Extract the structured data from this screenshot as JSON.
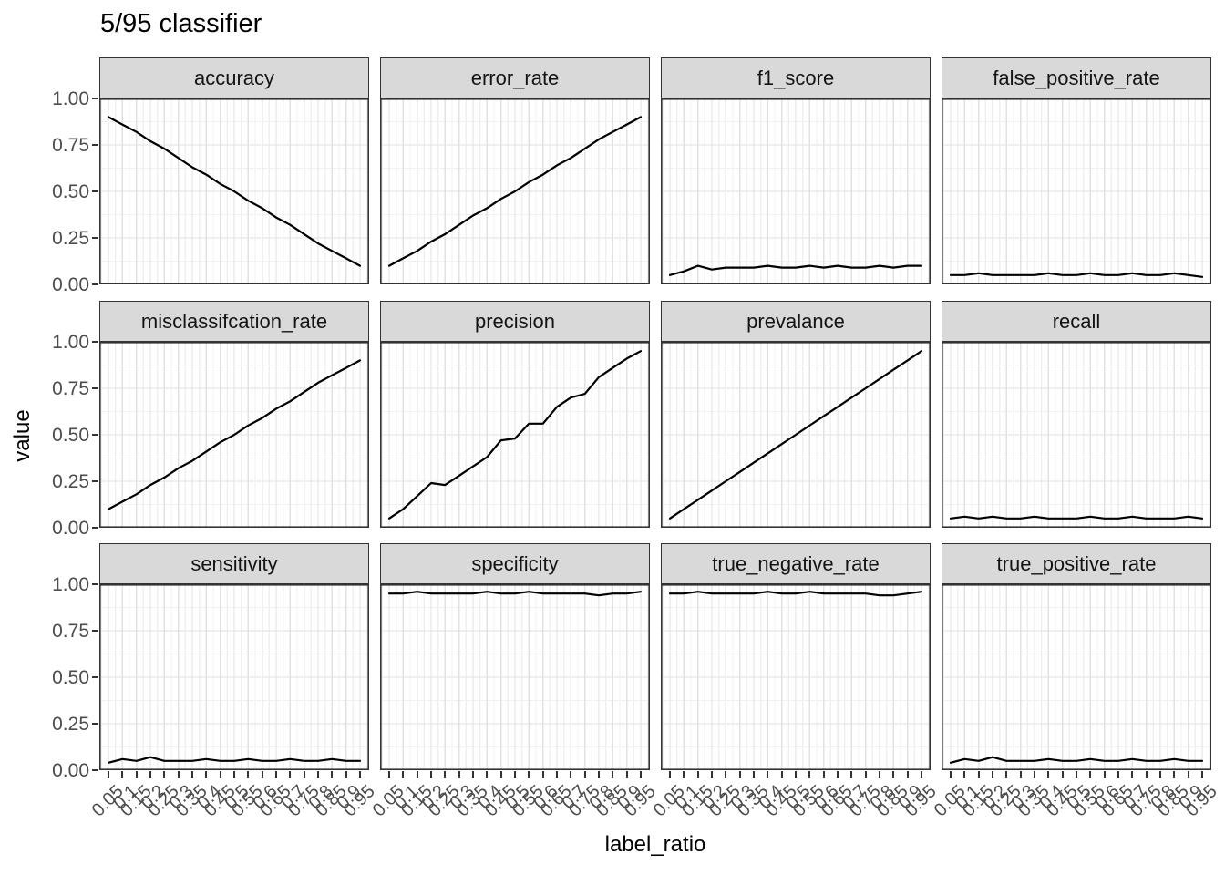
{
  "title": "5/95 classifier",
  "colors": {
    "strip_bg": "#d9d9d9",
    "panel_bg": "#ffffff",
    "panel_border": "#333333",
    "grid_major": "#e2e2e2",
    "grid_minor": "#f0f0f0",
    "series_line": "#000000",
    "tick_label": "#4d4d4d",
    "tick_mark": "#333333"
  },
  "chart_data": {
    "type": "line",
    "title": "5/95 classifier",
    "xlabel": "label_ratio",
    "ylabel": "value",
    "ylim": [
      0,
      1
    ],
    "grid": true,
    "legend": "none",
    "facet_layout": {
      "rows": 3,
      "cols": 4
    },
    "x": [
      0.05,
      0.1,
      0.15,
      0.2,
      0.25,
      0.3,
      0.35,
      0.4,
      0.45,
      0.5,
      0.55,
      0.6,
      0.65,
      0.7,
      0.75,
      0.8,
      0.85,
      0.9,
      0.95
    ],
    "x_tick_labels": [
      "0.05",
      "0.1",
      "0.15",
      "0.2",
      "0.25",
      "0.3",
      "0.35",
      "0.4",
      "0.45",
      "0.5",
      "0.55",
      "0.6",
      "0.65",
      "0.7",
      "0.75",
      "0.8",
      "0.85",
      "0.9",
      "0.95"
    ],
    "y_ticks": [
      {
        "label": "1.00",
        "value": 1.0
      },
      {
        "label": "0.75",
        "value": 0.75
      },
      {
        "label": "0.50",
        "value": 0.5
      },
      {
        "label": "0.25",
        "value": 0.25
      },
      {
        "label": "0.00",
        "value": 0.0
      }
    ],
    "y_minor_ticks": [
      0.125,
      0.375,
      0.625,
      0.875
    ],
    "series": [
      {
        "name": "accuracy",
        "values": [
          0.9,
          0.86,
          0.82,
          0.77,
          0.73,
          0.68,
          0.63,
          0.59,
          0.54,
          0.5,
          0.45,
          0.41,
          0.36,
          0.32,
          0.27,
          0.22,
          0.18,
          0.14,
          0.1
        ]
      },
      {
        "name": "error_rate",
        "values": [
          0.1,
          0.14,
          0.18,
          0.23,
          0.27,
          0.32,
          0.37,
          0.41,
          0.46,
          0.5,
          0.55,
          0.59,
          0.64,
          0.68,
          0.73,
          0.78,
          0.82,
          0.86,
          0.9
        ]
      },
      {
        "name": "f1_score",
        "values": [
          0.05,
          0.07,
          0.1,
          0.08,
          0.09,
          0.09,
          0.09,
          0.1,
          0.09,
          0.09,
          0.1,
          0.09,
          0.1,
          0.09,
          0.09,
          0.1,
          0.09,
          0.1,
          0.1
        ]
      },
      {
        "name": "false_positive_rate",
        "values": [
          0.05,
          0.05,
          0.06,
          0.05,
          0.05,
          0.05,
          0.05,
          0.06,
          0.05,
          0.05,
          0.06,
          0.05,
          0.05,
          0.06,
          0.05,
          0.05,
          0.06,
          0.05,
          0.04
        ]
      },
      {
        "name": "misclassifcation_rate",
        "values": [
          0.1,
          0.14,
          0.18,
          0.23,
          0.27,
          0.32,
          0.36,
          0.41,
          0.46,
          0.5,
          0.55,
          0.59,
          0.64,
          0.68,
          0.73,
          0.78,
          0.82,
          0.86,
          0.9
        ]
      },
      {
        "name": "precision",
        "values": [
          0.05,
          0.1,
          0.17,
          0.24,
          0.23,
          0.28,
          0.33,
          0.38,
          0.47,
          0.48,
          0.56,
          0.56,
          0.65,
          0.7,
          0.72,
          0.81,
          0.86,
          0.91,
          0.95
        ]
      },
      {
        "name": "prevalance",
        "values": [
          0.05,
          0.1,
          0.15,
          0.2,
          0.25,
          0.3,
          0.35,
          0.4,
          0.45,
          0.5,
          0.55,
          0.6,
          0.65,
          0.7,
          0.75,
          0.8,
          0.85,
          0.9,
          0.95
        ]
      },
      {
        "name": "recall",
        "values": [
          0.05,
          0.06,
          0.05,
          0.06,
          0.05,
          0.05,
          0.06,
          0.05,
          0.05,
          0.05,
          0.06,
          0.05,
          0.05,
          0.06,
          0.05,
          0.05,
          0.05,
          0.06,
          0.05
        ]
      },
      {
        "name": "sensitivity",
        "values": [
          0.04,
          0.06,
          0.05,
          0.07,
          0.05,
          0.05,
          0.05,
          0.06,
          0.05,
          0.05,
          0.06,
          0.05,
          0.05,
          0.06,
          0.05,
          0.05,
          0.06,
          0.05,
          0.05
        ]
      },
      {
        "name": "specificity",
        "values": [
          0.95,
          0.95,
          0.96,
          0.95,
          0.95,
          0.95,
          0.95,
          0.96,
          0.95,
          0.95,
          0.96,
          0.95,
          0.95,
          0.95,
          0.95,
          0.94,
          0.95,
          0.95,
          0.96
        ]
      },
      {
        "name": "true_negative_rate",
        "values": [
          0.95,
          0.95,
          0.96,
          0.95,
          0.95,
          0.95,
          0.95,
          0.96,
          0.95,
          0.95,
          0.96,
          0.95,
          0.95,
          0.95,
          0.95,
          0.94,
          0.94,
          0.95,
          0.96
        ]
      },
      {
        "name": "true_positive_rate",
        "values": [
          0.04,
          0.06,
          0.05,
          0.07,
          0.05,
          0.05,
          0.05,
          0.06,
          0.05,
          0.05,
          0.06,
          0.05,
          0.05,
          0.06,
          0.05,
          0.05,
          0.06,
          0.05,
          0.05
        ]
      }
    ]
  }
}
